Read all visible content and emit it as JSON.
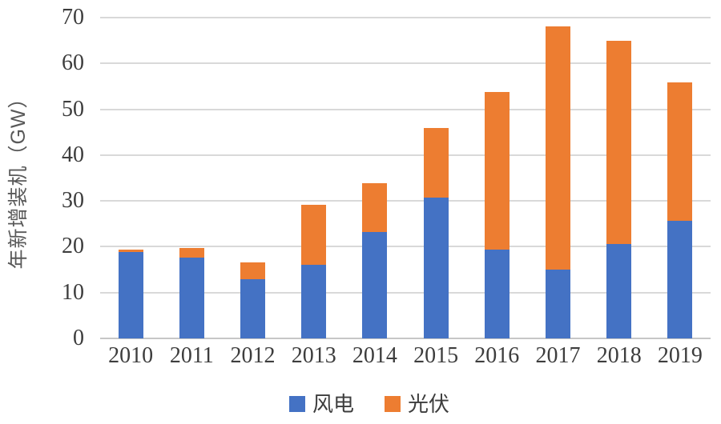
{
  "chart_data": {
    "type": "bar",
    "stacked": true,
    "title": "",
    "xlabel": "",
    "ylabel": "年新增装机（GW）",
    "categories": [
      "2010",
      "2011",
      "2012",
      "2013",
      "2014",
      "2015",
      "2016",
      "2017",
      "2018",
      "2019"
    ],
    "series": [
      {
        "name": "风电",
        "color": "#4472C4",
        "values": [
          18.9,
          17.6,
          13.0,
          16.1,
          23.2,
          30.8,
          19.3,
          15.0,
          20.6,
          25.7
        ]
      },
      {
        "name": "光伏",
        "color": "#ED7D31",
        "values": [
          0.5,
          2.1,
          3.5,
          13.0,
          10.6,
          15.1,
          34.5,
          53.1,
          44.4,
          30.1
        ]
      }
    ],
    "ylim": [
      0,
      70
    ],
    "yticks": [
      0,
      10,
      20,
      30,
      40,
      50,
      60,
      70
    ],
    "grid": true,
    "legend_position": "bottom",
    "colors": {
      "wind": "#4472C4",
      "solar": "#ED7D31",
      "gridline": "#D9D9D9",
      "baseline": "#C6C6C6",
      "axis_text": "#3D3D3D",
      "ylabel_text": "#595959",
      "background": "#FFFFFF"
    }
  }
}
